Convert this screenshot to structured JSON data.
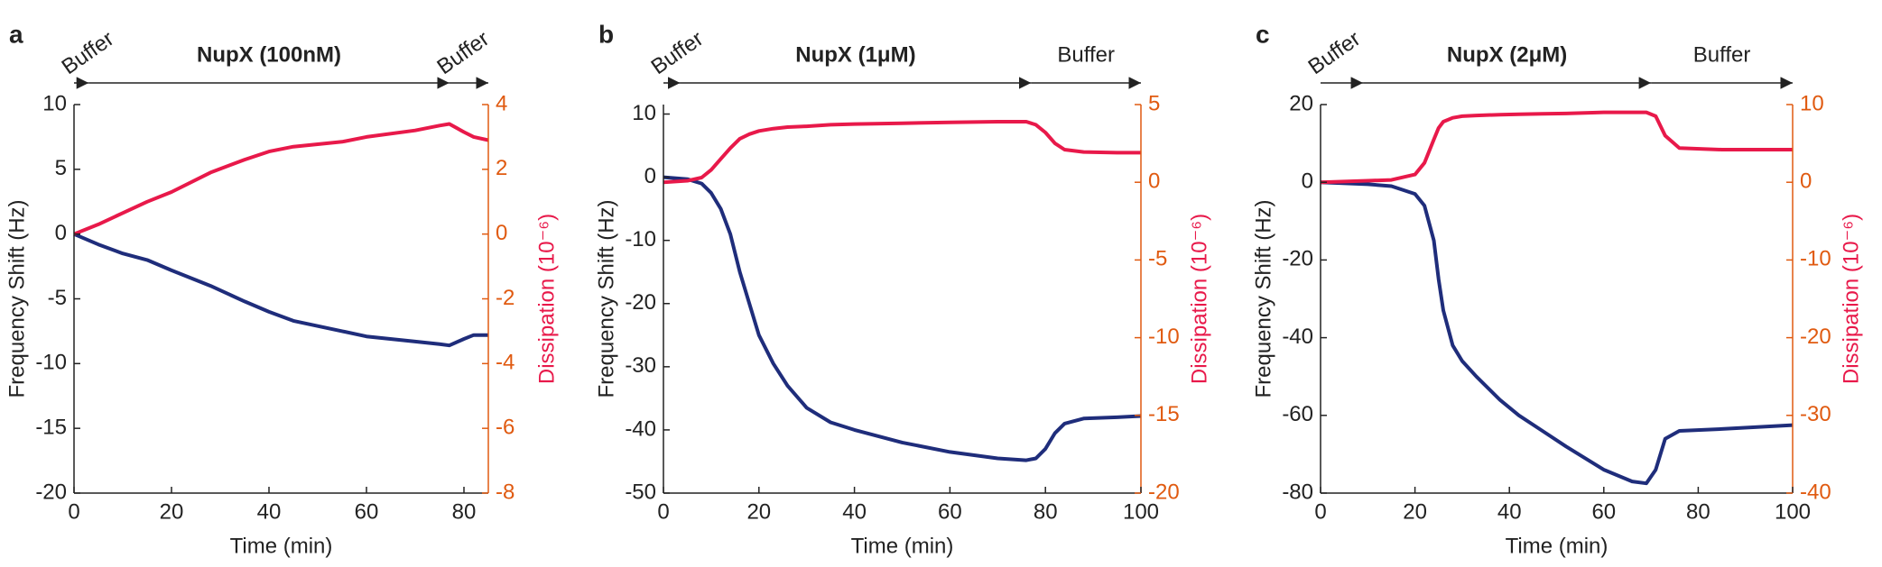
{
  "chart_data": [
    {
      "type": "line",
      "panel": "a",
      "xlabel": "Time (min)",
      "ylabel": "Frequency Shift (Hz)",
      "y2label": "Dissipation (10⁻⁶)",
      "phases": [
        {
          "label": "Buffer",
          "start": 0,
          "end": 3
        },
        {
          "label": "NupX (100nM)",
          "start": 3,
          "end": 77
        },
        {
          "label": "Buffer",
          "start": 77,
          "end": 85
        }
      ],
      "xlim": [
        0,
        85
      ],
      "xticks": [
        0,
        20,
        40,
        60,
        80
      ],
      "ylim": [
        -20,
        10
      ],
      "yticks": [
        -20,
        -15,
        -10,
        -5,
        0,
        5,
        10
      ],
      "y2lim": [
        -8,
        4
      ],
      "y2ticks": [
        -8,
        -6,
        -4,
        -2,
        0,
        2,
        4
      ],
      "x": [
        0,
        5,
        10,
        15,
        20,
        28,
        35,
        40,
        45,
        55,
        60,
        70,
        75,
        77,
        80,
        82,
        85
      ],
      "series": [
        {
          "color": "#1f2d7b",
          "values": [
            0,
            -0.8,
            -1.5,
            -2,
            -2.8,
            -4,
            -5.2,
            -6,
            -6.7,
            -7.5,
            -7.9,
            -8.3,
            -8.5,
            -8.6,
            -8.1,
            -7.8,
            -7.8
          ]
        },
        {
          "color": "#e8194a",
          "axis": "y2",
          "values": [
            0,
            0.3,
            0.65,
            1.0,
            1.3,
            1.9,
            2.3,
            2.55,
            2.7,
            2.85,
            3.0,
            3.2,
            3.35,
            3.4,
            3.15,
            3.0,
            2.9
          ]
        }
      ]
    },
    {
      "type": "line",
      "panel": "b",
      "xlabel": "Time (min)",
      "ylabel": "Frequency Shift (Hz)",
      "y2label": "Dissipation (10⁻⁶)",
      "phases": [
        {
          "label": "Buffer",
          "start": 0,
          "end": 3.5
        },
        {
          "label": "NupX (1μM)",
          "start": 3.5,
          "end": 77
        },
        {
          "label": "Buffer",
          "start": 77,
          "end": 100
        }
      ],
      "xlim": [
        0,
        100
      ],
      "xticks": [
        0,
        20,
        40,
        60,
        80,
        100
      ],
      "ylim": [
        -50,
        11.5
      ],
      "yticks": [
        -50,
        -40,
        -30,
        -20,
        -10,
        0,
        10
      ],
      "y2lim": [
        -20,
        5
      ],
      "y2ticks": [
        -20,
        -15,
        -10,
        -5,
        0,
        5
      ],
      "x": [
        0,
        5,
        8,
        10,
        12,
        14,
        16,
        18,
        20,
        23,
        26,
        30,
        35,
        40,
        50,
        60,
        70,
        76,
        78,
        80,
        82,
        84,
        88,
        95,
        100
      ],
      "series": [
        {
          "color": "#1f2d7b",
          "values": [
            0,
            -0.3,
            -1,
            -2.5,
            -5,
            -9,
            -15,
            -20,
            -25,
            -29.5,
            -33,
            -36.5,
            -38.8,
            -40,
            -42,
            -43.5,
            -44.5,
            -44.8,
            -44.5,
            -43,
            -40.5,
            -39,
            -38.2,
            -38,
            -37.8
          ]
        },
        {
          "color": "#e8194a",
          "axis": "y2",
          "values": [
            0,
            0.1,
            0.3,
            0.8,
            1.5,
            2.2,
            2.8,
            3.1,
            3.3,
            3.45,
            3.55,
            3.6,
            3.7,
            3.75,
            3.8,
            3.85,
            3.9,
            3.9,
            3.7,
            3.2,
            2.5,
            2.1,
            1.95,
            1.9,
            1.9
          ]
        }
      ]
    },
    {
      "type": "line",
      "panel": "c",
      "xlabel": "Time (min)",
      "ylabel": "Frequency Shift (Hz)",
      "y2label": "Dissipation (10⁻⁶)",
      "phases": [
        {
          "label": "Buffer",
          "start": 0,
          "end": 9
        },
        {
          "label": "NupX (2μM)",
          "start": 9,
          "end": 70
        },
        {
          "label": "Buffer",
          "start": 70,
          "end": 100
        }
      ],
      "xlim": [
        0,
        100
      ],
      "xticks": [
        0,
        20,
        40,
        60,
        80,
        100
      ],
      "ylim": [
        -80,
        20
      ],
      "yticks": [
        -80,
        -60,
        -40,
        -20,
        0,
        20
      ],
      "y2lim": [
        -40,
        10
      ],
      "y2ticks": [
        -40,
        -30,
        -20,
        -10,
        0,
        10
      ],
      "x": [
        0,
        10,
        15,
        20,
        22,
        24,
        25,
        26,
        28,
        30,
        33,
        38,
        42,
        47,
        52,
        60,
        66,
        69,
        71,
        73,
        76,
        85,
        100
      ],
      "series": [
        {
          "color": "#1f2d7b",
          "values": [
            0,
            -0.5,
            -1,
            -3,
            -6,
            -15,
            -25,
            -33,
            -42,
            -46,
            -50,
            -56,
            -60,
            -64,
            -68,
            -74,
            -77,
            -77.5,
            -74,
            -66,
            -64,
            -63.5,
            -62.5
          ]
        },
        {
          "color": "#e8194a",
          "axis": "y2",
          "values": [
            0,
            0.2,
            0.3,
            1,
            2.5,
            5.5,
            7,
            7.8,
            8.3,
            8.5,
            8.6,
            8.7,
            8.75,
            8.8,
            8.85,
            9,
            9,
            9,
            8.5,
            6,
            4.4,
            4.2,
            4.2
          ]
        }
      ]
    }
  ]
}
